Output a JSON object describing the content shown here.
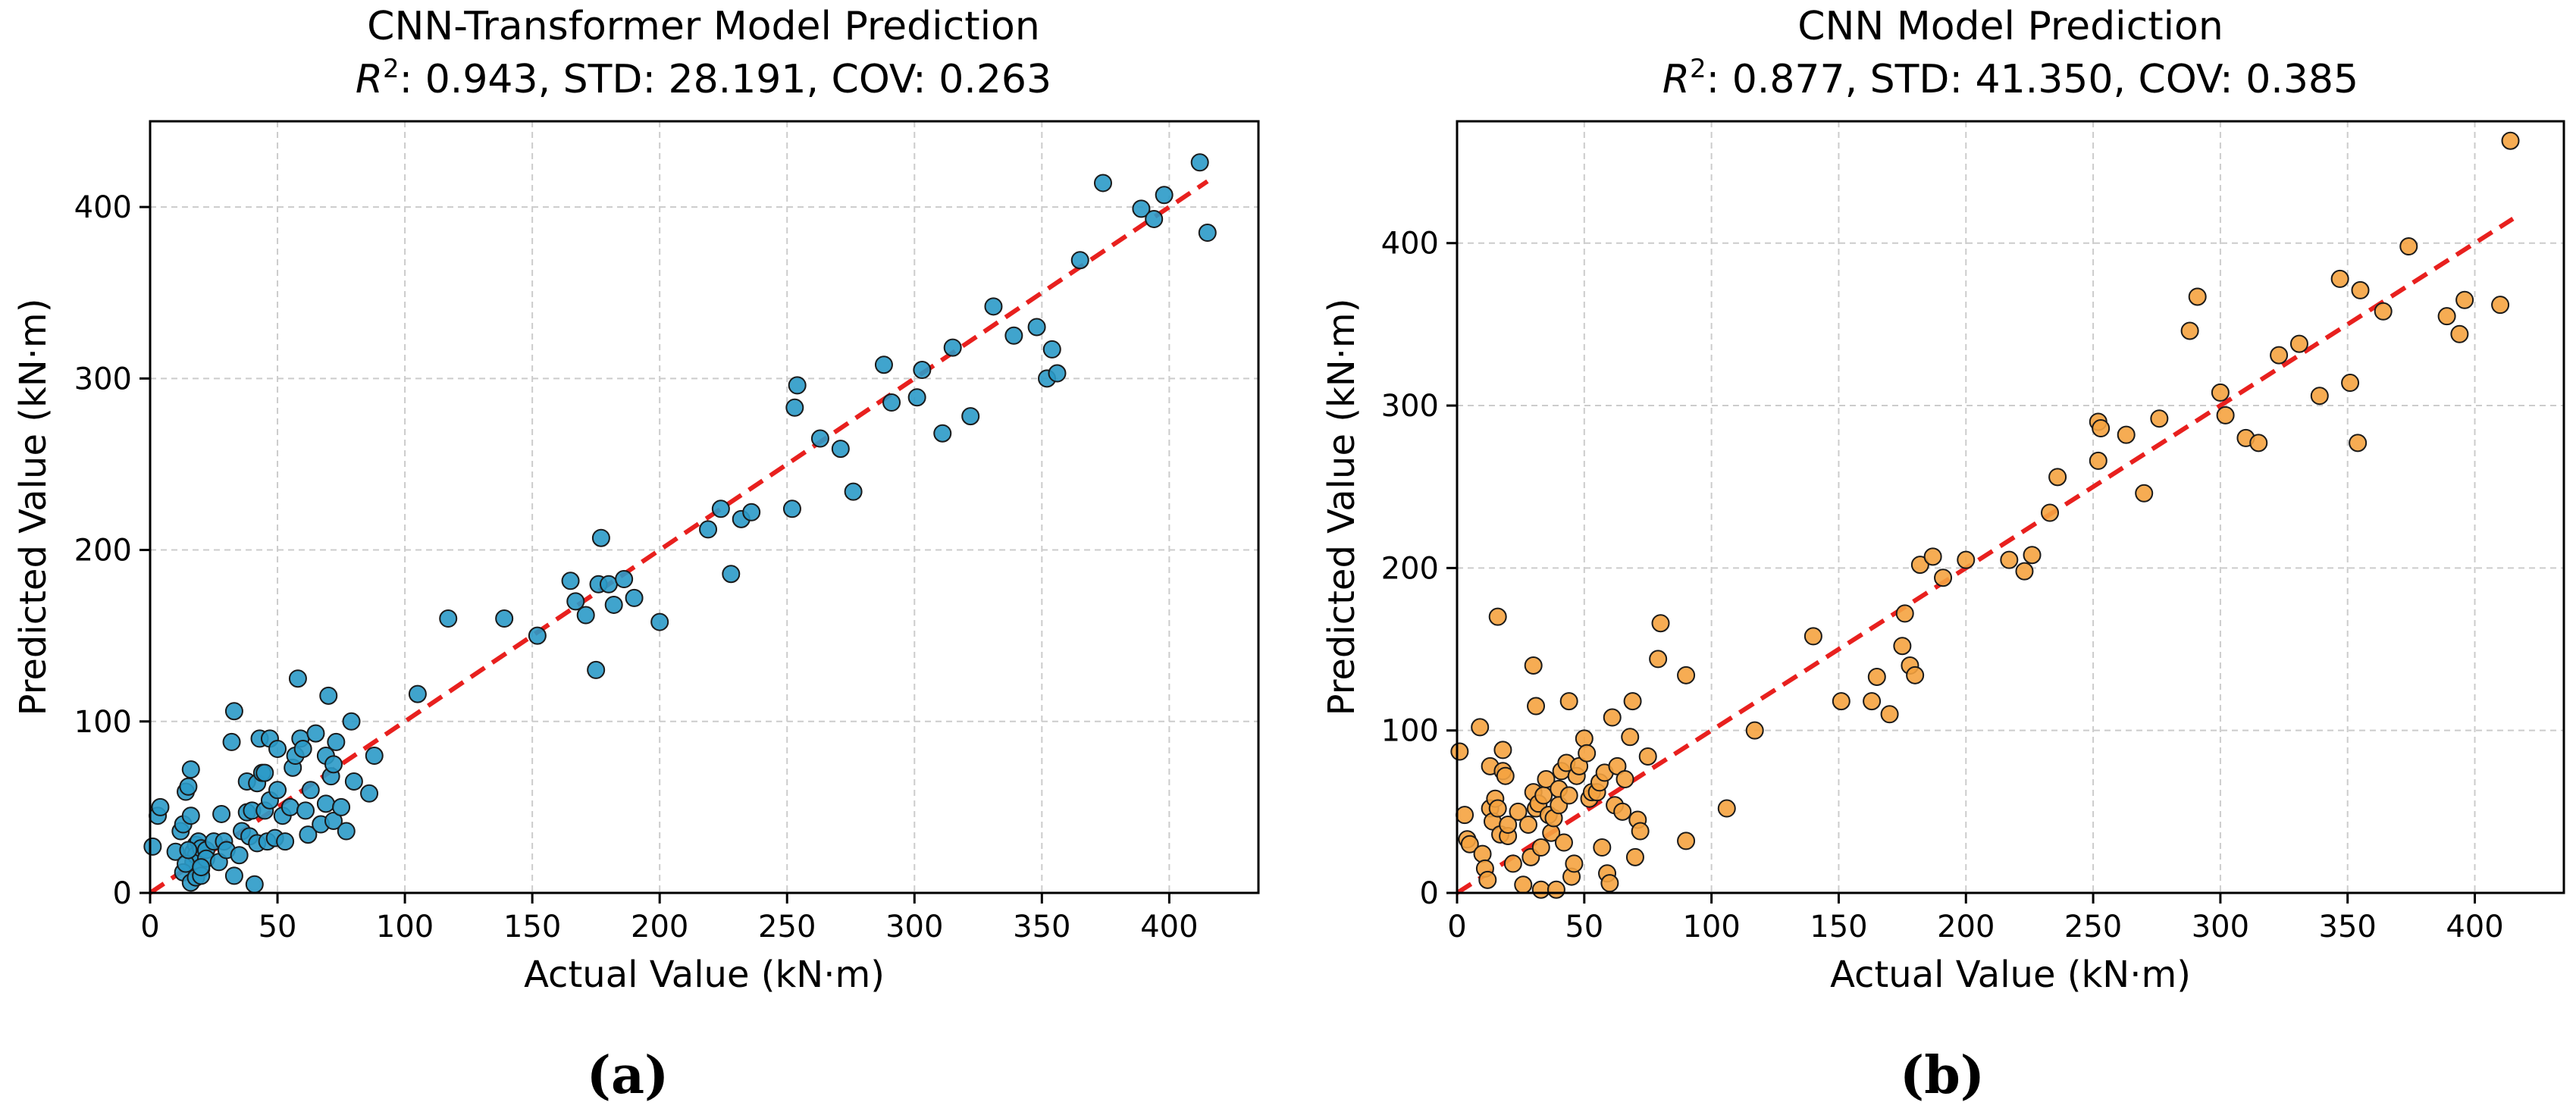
{
  "chart_data": [
    {
      "type": "scatter",
      "title": "CNN-Transformer Model Prediction",
      "subtitle_r2_symbol": "R",
      "subtitle_r2_sup": "2",
      "subtitle_rest": ": 0.943, STD: 28.191, COV: 0.263",
      "xlabel": "Actual Value (kN·m)",
      "ylabel": "Predicted Value (kN·m)",
      "xlim": [
        0,
        435
      ],
      "ylim": [
        0,
        450
      ],
      "xticks": [
        0,
        50,
        100,
        150,
        200,
        250,
        300,
        350,
        400
      ],
      "yticks": [
        0,
        100,
        200,
        300,
        400
      ],
      "grid": true,
      "point_color": "#2b9ac8",
      "line_color": "#e8201e",
      "reference_line": [
        [
          0,
          0
        ],
        [
          415,
          415
        ]
      ],
      "panel_label": "(a)",
      "points": [
        [
          1,
          27
        ],
        [
          3,
          45
        ],
        [
          4,
          50
        ],
        [
          10,
          24
        ],
        [
          12,
          36
        ],
        [
          13,
          40
        ],
        [
          14,
          59
        ],
        [
          15,
          62
        ],
        [
          16,
          72
        ],
        [
          16,
          45
        ],
        [
          17,
          24
        ],
        [
          17,
          18
        ],
        [
          18,
          28
        ],
        [
          18,
          22
        ],
        [
          19,
          30
        ],
        [
          20,
          26
        ],
        [
          20,
          14
        ],
        [
          22,
          25
        ],
        [
          22,
          20
        ],
        [
          13,
          12
        ],
        [
          14,
          17
        ],
        [
          16,
          6
        ],
        [
          18,
          9
        ],
        [
          20,
          10
        ],
        [
          20,
          15
        ],
        [
          15,
          25
        ],
        [
          25,
          30
        ],
        [
          27,
          18
        ],
        [
          28,
          46
        ],
        [
          29,
          30
        ],
        [
          30,
          25
        ],
        [
          32,
          88
        ],
        [
          33,
          106
        ],
        [
          33,
          10
        ],
        [
          35,
          22
        ],
        [
          36,
          36
        ],
        [
          38,
          47
        ],
        [
          38,
          65
        ],
        [
          39,
          33
        ],
        [
          40,
          48
        ],
        [
          41,
          5
        ],
        [
          42,
          29
        ],
        [
          42,
          64
        ],
        [
          43,
          90
        ],
        [
          44,
          70
        ],
        [
          45,
          70
        ],
        [
          45,
          48
        ],
        [
          46,
          30
        ],
        [
          47,
          90
        ],
        [
          47,
          54
        ],
        [
          49,
          32
        ],
        [
          50,
          84
        ],
        [
          50,
          60
        ],
        [
          52,
          45
        ],
        [
          53,
          30
        ],
        [
          55,
          50
        ],
        [
          56,
          73
        ],
        [
          57,
          80
        ],
        [
          58,
          125
        ],
        [
          59,
          90
        ],
        [
          60,
          84
        ],
        [
          61,
          48
        ],
        [
          62,
          34
        ],
        [
          63,
          60
        ],
        [
          65,
          93
        ],
        [
          67,
          40
        ],
        [
          69,
          80
        ],
        [
          69,
          52
        ],
        [
          70,
          115
        ],
        [
          71,
          68
        ],
        [
          72,
          75
        ],
        [
          72,
          42
        ],
        [
          73,
          88
        ],
        [
          75,
          50
        ],
        [
          77,
          36
        ],
        [
          79,
          100
        ],
        [
          80,
          65
        ],
        [
          86,
          58
        ],
        [
          88,
          80
        ],
        [
          105,
          116
        ],
        [
          117,
          160
        ],
        [
          139,
          160
        ],
        [
          152,
          150
        ],
        [
          165,
          182
        ],
        [
          167,
          170
        ],
        [
          171,
          162
        ],
        [
          175,
          130
        ],
        [
          176,
          180
        ],
        [
          177,
          207
        ],
        [
          180,
          180
        ],
        [
          182,
          168
        ],
        [
          186,
          183
        ],
        [
          190,
          172
        ],
        [
          200,
          158
        ],
        [
          219,
          212
        ],
        [
          224,
          224
        ],
        [
          228,
          186
        ],
        [
          232,
          218
        ],
        [
          236,
          222
        ],
        [
          252,
          224
        ],
        [
          253,
          283
        ],
        [
          254,
          296
        ],
        [
          263,
          265
        ],
        [
          271,
          259
        ],
        [
          276,
          234
        ],
        [
          288,
          308
        ],
        [
          291,
          286
        ],
        [
          301,
          289
        ],
        [
          303,
          305
        ],
        [
          311,
          268
        ],
        [
          315,
          318
        ],
        [
          322,
          278
        ],
        [
          331,
          342
        ],
        [
          339,
          325
        ],
        [
          348,
          330
        ],
        [
          352,
          300
        ],
        [
          354,
          317
        ],
        [
          356,
          303
        ],
        [
          365,
          369
        ],
        [
          374,
          414
        ],
        [
          389,
          399
        ],
        [
          394,
          393
        ],
        [
          398,
          407
        ],
        [
          412,
          426
        ],
        [
          415,
          385
        ]
      ]
    },
    {
      "type": "scatter",
      "title": "CNN Model Prediction",
      "subtitle_r2_symbol": "R",
      "subtitle_r2_sup": "2",
      "subtitle_rest": ": 0.877, STD: 41.350, COV: 0.385",
      "xlabel": "Actual Value (kN·m)",
      "ylabel": "Predicted Value (kN·m)",
      "xlim": [
        0,
        435
      ],
      "ylim": [
        0,
        475
      ],
      "xticks": [
        0,
        50,
        100,
        150,
        200,
        250,
        300,
        350,
        400
      ],
      "yticks": [
        0,
        100,
        200,
        300,
        400
      ],
      "grid": true,
      "point_color": "#f5a340",
      "line_color": "#e8201e",
      "reference_line": [
        [
          0,
          0
        ],
        [
          415,
          415
        ]
      ],
      "panel_label": "(b)",
      "points": [
        [
          1,
          87
        ],
        [
          3,
          48
        ],
        [
          4,
          33
        ],
        [
          5,
          30
        ],
        [
          9,
          102
        ],
        [
          10,
          24
        ],
        [
          11,
          15
        ],
        [
          12,
          8
        ],
        [
          13,
          52
        ],
        [
          13,
          78
        ],
        [
          14,
          44
        ],
        [
          15,
          58
        ],
        [
          16,
          170
        ],
        [
          16,
          52
        ],
        [
          17,
          36
        ],
        [
          18,
          88
        ],
        [
          18,
          75
        ],
        [
          19,
          72
        ],
        [
          20,
          35
        ],
        [
          20,
          42
        ],
        [
          22,
          18
        ],
        [
          24,
          50
        ],
        [
          26,
          5
        ],
        [
          28,
          42
        ],
        [
          29,
          22
        ],
        [
          30,
          140
        ],
        [
          30,
          62
        ],
        [
          31,
          115
        ],
        [
          31,
          52
        ],
        [
          32,
          55
        ],
        [
          33,
          28
        ],
        [
          33,
          2
        ],
        [
          34,
          60
        ],
        [
          35,
          70
        ],
        [
          36,
          48
        ],
        [
          37,
          37
        ],
        [
          38,
          46
        ],
        [
          39,
          2
        ],
        [
          40,
          64
        ],
        [
          40,
          54
        ],
        [
          41,
          75
        ],
        [
          42,
          31
        ],
        [
          43,
          80
        ],
        [
          44,
          118
        ],
        [
          44,
          60
        ],
        [
          45,
          10
        ],
        [
          46,
          18
        ],
        [
          47,
          72
        ],
        [
          48,
          78
        ],
        [
          50,
          95
        ],
        [
          51,
          86
        ],
        [
          52,
          58
        ],
        [
          53,
          62
        ],
        [
          55,
          62
        ],
        [
          56,
          68
        ],
        [
          57,
          28
        ],
        [
          58,
          74
        ],
        [
          59,
          12
        ],
        [
          60,
          6
        ],
        [
          61,
          108
        ],
        [
          62,
          54
        ],
        [
          63,
          78
        ],
        [
          65,
          50
        ],
        [
          66,
          70
        ],
        [
          68,
          96
        ],
        [
          69,
          118
        ],
        [
          70,
          22
        ],
        [
          71,
          45
        ],
        [
          72,
          38
        ],
        [
          75,
          84
        ],
        [
          79,
          144
        ],
        [
          80,
          166
        ],
        [
          90,
          134
        ],
        [
          90,
          32
        ],
        [
          106,
          52
        ],
        [
          117,
          100
        ],
        [
          140,
          158
        ],
        [
          151,
          118
        ],
        [
          163,
          118
        ],
        [
          165,
          133
        ],
        [
          170,
          110
        ],
        [
          175,
          152
        ],
        [
          176,
          172
        ],
        [
          178,
          140
        ],
        [
          180,
          134
        ],
        [
          182,
          202
        ],
        [
          187,
          207
        ],
        [
          191,
          194
        ],
        [
          200,
          205
        ],
        [
          217,
          205
        ],
        [
          223,
          198
        ],
        [
          226,
          208
        ],
        [
          233,
          234
        ],
        [
          236,
          256
        ],
        [
          252,
          266
        ],
        [
          252,
          290
        ],
        [
          253,
          286
        ],
        [
          263,
          282
        ],
        [
          270,
          246
        ],
        [
          276,
          292
        ],
        [
          288,
          346
        ],
        [
          291,
          367
        ],
        [
          300,
          308
        ],
        [
          302,
          294
        ],
        [
          310,
          280
        ],
        [
          315,
          277
        ],
        [
          323,
          331
        ],
        [
          331,
          338
        ],
        [
          339,
          306
        ],
        [
          347,
          378
        ],
        [
          351,
          314
        ],
        [
          354,
          277
        ],
        [
          355,
          371
        ],
        [
          364,
          358
        ],
        [
          374,
          398
        ],
        [
          389,
          355
        ],
        [
          394,
          344
        ],
        [
          396,
          365
        ],
        [
          410,
          362
        ],
        [
          414,
          463
        ]
      ]
    }
  ]
}
